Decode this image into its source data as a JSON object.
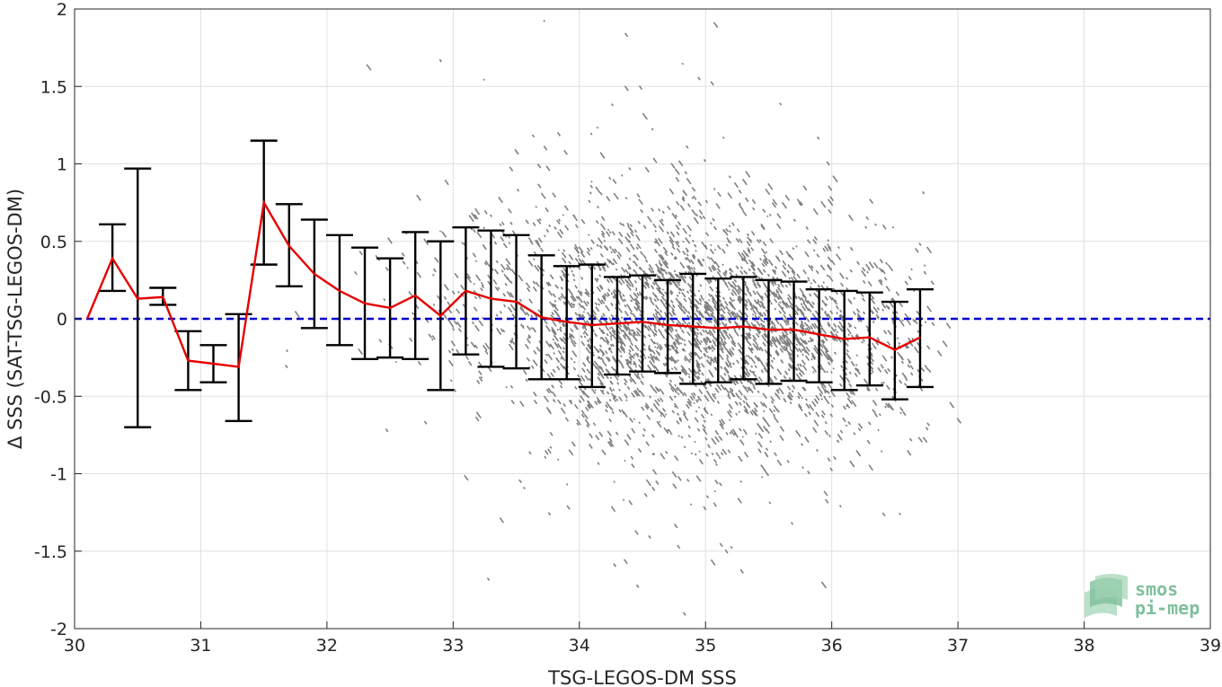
{
  "chart_data": {
    "type": "scatter",
    "xlabel": "TSG-LEGOS-DM SSS",
    "ylabel": "Δ SSS (SAT-TSG-LEGOS-DM)",
    "xlim": [
      30,
      39
    ],
    "ylim": [
      -2,
      2
    ],
    "x_ticks": [
      "30",
      "31",
      "32",
      "33",
      "34",
      "35",
      "36",
      "37",
      "38",
      "39"
    ],
    "y_ticks": [
      "2",
      "1.5",
      "1",
      "0.5",
      "0",
      "-0.5",
      "-1",
      "-1.5",
      "-2"
    ],
    "grid": true,
    "zero_line": {
      "y": 0,
      "style": "dashed",
      "color": "#0000cc"
    },
    "scatter_color": "#808080",
    "mean_line_color": "#e60000",
    "errorbar_color": "#000000",
    "binned_stats": {
      "x": [
        30.1,
        30.3,
        30.5,
        30.7,
        30.9,
        31.1,
        31.3,
        31.5,
        31.7,
        31.9,
        32.1,
        32.3,
        32.5,
        32.7,
        32.9,
        33.1,
        33.3,
        33.5,
        33.7,
        33.9,
        34.1,
        34.3,
        34.5,
        34.7,
        34.9,
        35.1,
        35.3,
        35.5,
        35.7,
        35.9,
        36.1,
        36.3,
        36.5,
        36.7
      ],
      "mean": [
        0.0,
        0.39,
        0.13,
        0.14,
        -0.27,
        -0.29,
        -0.31,
        0.75,
        0.47,
        0.29,
        0.18,
        0.1,
        0.07,
        0.15,
        0.02,
        0.18,
        0.13,
        0.11,
        0.01,
        -0.02,
        -0.04,
        -0.03,
        -0.02,
        -0.04,
        -0.05,
        -0.06,
        -0.05,
        -0.07,
        -0.07,
        -0.1,
        -0.13,
        -0.12,
        -0.2,
        -0.12
      ],
      "upper": [
        null,
        0.61,
        0.97,
        0.2,
        -0.08,
        -0.17,
        0.03,
        1.15,
        0.74,
        0.64,
        0.54,
        0.46,
        0.39,
        0.56,
        0.5,
        0.59,
        0.57,
        0.54,
        0.41,
        0.34,
        0.35,
        0.27,
        0.28,
        0.25,
        0.29,
        0.26,
        0.27,
        0.25,
        0.24,
        0.19,
        0.18,
        0.17,
        0.11,
        0.19
      ],
      "lower": [
        null,
        0.18,
        -0.7,
        0.09,
        -0.46,
        -0.41,
        -0.66,
        0.35,
        0.21,
        -0.06,
        -0.17,
        -0.26,
        -0.25,
        -0.26,
        -0.46,
        -0.23,
        -0.31,
        -0.32,
        -0.39,
        -0.39,
        -0.44,
        -0.36,
        -0.34,
        -0.35,
        -0.42,
        -0.41,
        -0.39,
        -0.42,
        -0.4,
        -0.41,
        -0.46,
        -0.43,
        -0.52,
        -0.44
      ]
    },
    "logo": {
      "line1": "smos",
      "line2": "pi-mep",
      "color": "#7fbf9b"
    }
  }
}
